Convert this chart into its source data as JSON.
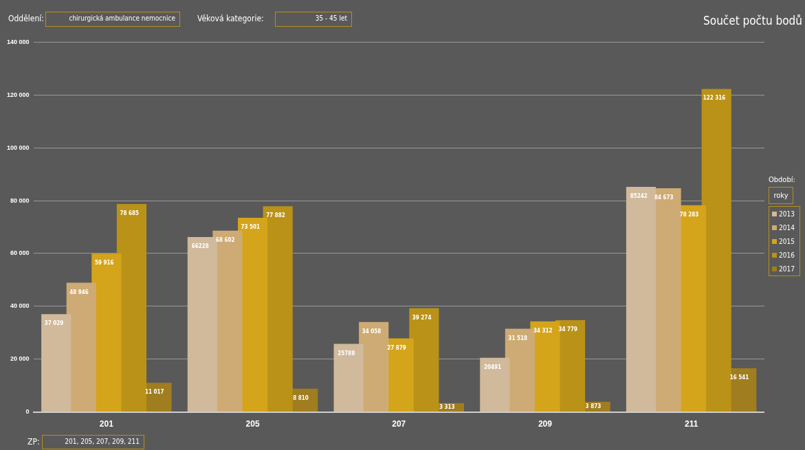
{
  "chart_data": {
    "type": "bar",
    "title": "Součet počtu bodů",
    "categories": [
      "201",
      "205",
      "207",
      "209",
      "211"
    ],
    "series": [
      {
        "name": "2013",
        "color": "#d1b99b",
        "values": [
          37029,
          66228,
          25788,
          20491,
          85242
        ],
        "value_labels": [
          "37 029",
          "66228",
          "25788",
          "20491",
          "85242"
        ]
      },
      {
        "name": "2014",
        "color": "#ceab74",
        "values": [
          48946,
          68602,
          34058,
          31518,
          84673
        ],
        "value_labels": [
          "48 946",
          "68 602",
          "34 058",
          "31 518",
          "84 673"
        ]
      },
      {
        "name": "2015",
        "color": "#d4a41b",
        "values": [
          59916,
          73501,
          27879,
          34312,
          78283
        ],
        "value_labels": [
          "59 916",
          "73 501",
          "27 879",
          "34 312",
          "78 283"
        ]
      },
      {
        "name": "2016",
        "color": "#ba9218",
        "values": [
          78685,
          77882,
          39274,
          34779,
          122316
        ],
        "value_labels": [
          "78 685",
          "77 882",
          "39 274",
          "34 779",
          "122 316"
        ]
      },
      {
        "name": "2017",
        "color": "#a07d1f",
        "values": [
          11017,
          8810,
          3313,
          3873,
          16541
        ],
        "value_labels": [
          "11 017",
          "8 810",
          "3 313",
          "3 873",
          "16 541"
        ]
      }
    ],
    "ylim": [
      0,
      140000
    ],
    "yticks": [
      0,
      {
        "value": 20000,
        "label": "20 000"
      },
      {
        "value": 40000,
        "label": "40 000"
      },
      {
        "value": 60000,
        "label": "60 000"
      },
      {
        "value": 80000,
        "label": "80 000"
      },
      {
        "value": 100000,
        "label": "100 000"
      },
      {
        "value": 120000,
        "label": "120 000"
      },
      {
        "value": 140000,
        "label": "140 000"
      }
    ],
    "grid": "y",
    "legend": "right",
    "legend_title": "Období:",
    "annotations": [
      "Oddělení:",
      "chirurgická ambulance nemocnice",
      "Věková kategorie:",
      "35 - 45 let",
      "ZP:",
      "201, 205, 207, 209, 211",
      "roky"
    ]
  }
}
